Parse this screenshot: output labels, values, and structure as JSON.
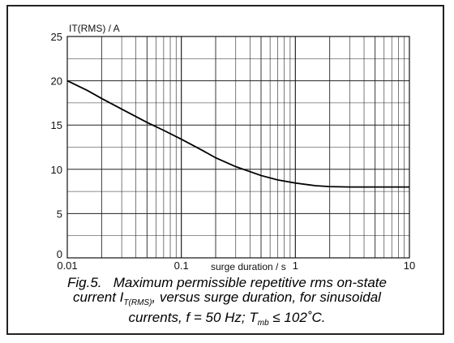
{
  "chart_data": {
    "type": "line",
    "x_scale": "log",
    "grid": true,
    "xlim": [
      0.01,
      10
    ],
    "ylim": [
      0,
      25
    ],
    "ylabel": "IT(RMS) / A",
    "xlabel": "surge duration / s",
    "x_ticks": [
      "0.01",
      "0.1",
      "1",
      "10"
    ],
    "y_ticks": [
      "0",
      "5",
      "10",
      "15",
      "20",
      "25"
    ],
    "series": [
      {
        "x": [
          0.01,
          0.015,
          0.02,
          0.03,
          0.05,
          0.07,
          0.1,
          0.15,
          0.2,
          0.3,
          0.5,
          0.7,
          1,
          1.5,
          2,
          3,
          5,
          7,
          10
        ],
        "y": [
          20.0,
          18.9,
          18.0,
          16.8,
          15.3,
          14.4,
          13.4,
          12.2,
          11.3,
          10.3,
          9.3,
          8.8,
          8.45,
          8.15,
          8.05,
          8.0,
          8.0,
          8.0,
          8.0
        ]
      }
    ],
    "caption": {
      "label": "Fig.5.",
      "line1": "Maximum permissible repetitive rms on-state",
      "line2_pre": "current I",
      "line2_sub": "T(RMS)",
      "line2_post": ", versus surge duration, for sinusoidal",
      "line3_pre": "currents, f = 50 Hz; T",
      "line3_sub": "mb",
      "line3_post": " ≤ 102˚C."
    }
  }
}
